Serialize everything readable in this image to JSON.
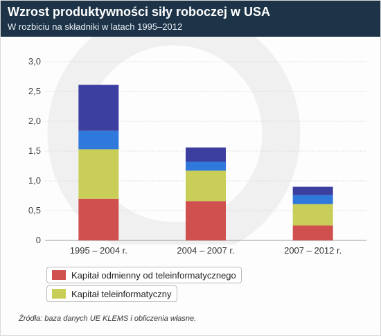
{
  "header": {
    "title": "Wzrost produktywności siły roboczej w USA",
    "subtitle": "W rozbiciu na składniki w latach 1995–2012"
  },
  "chart_data": {
    "type": "bar",
    "stacked": true,
    "categories": [
      "1995 – 2004 r.",
      "2004 – 2007 r.",
      "2007 – 2012 r."
    ],
    "series": [
      {
        "name": "Kapitał odmienny od teleinformatycznego",
        "color": "#d05050",
        "values": [
          0.7,
          0.66,
          0.25
        ]
      },
      {
        "name": "Kapitał teleinformatyczny",
        "color": "#c8ce58",
        "values": [
          0.83,
          0.51,
          0.36
        ]
      },
      {
        "color": "#2f78dc",
        "values": [
          0.31,
          0.15,
          0.15
        ]
      },
      {
        "color": "#3c3ea0",
        "values": [
          0.77,
          0.24,
          0.14
        ]
      }
    ],
    "y_ticks": [
      "0",
      "0,5",
      "1,0",
      "1,5",
      "2,0",
      "2,5",
      "3,0"
    ],
    "ylim": [
      0,
      3.0
    ],
    "grid": true,
    "legend_position": "bottom-left"
  },
  "source": "Źródła: baza danych UE KLEMS i obliczenia własne."
}
